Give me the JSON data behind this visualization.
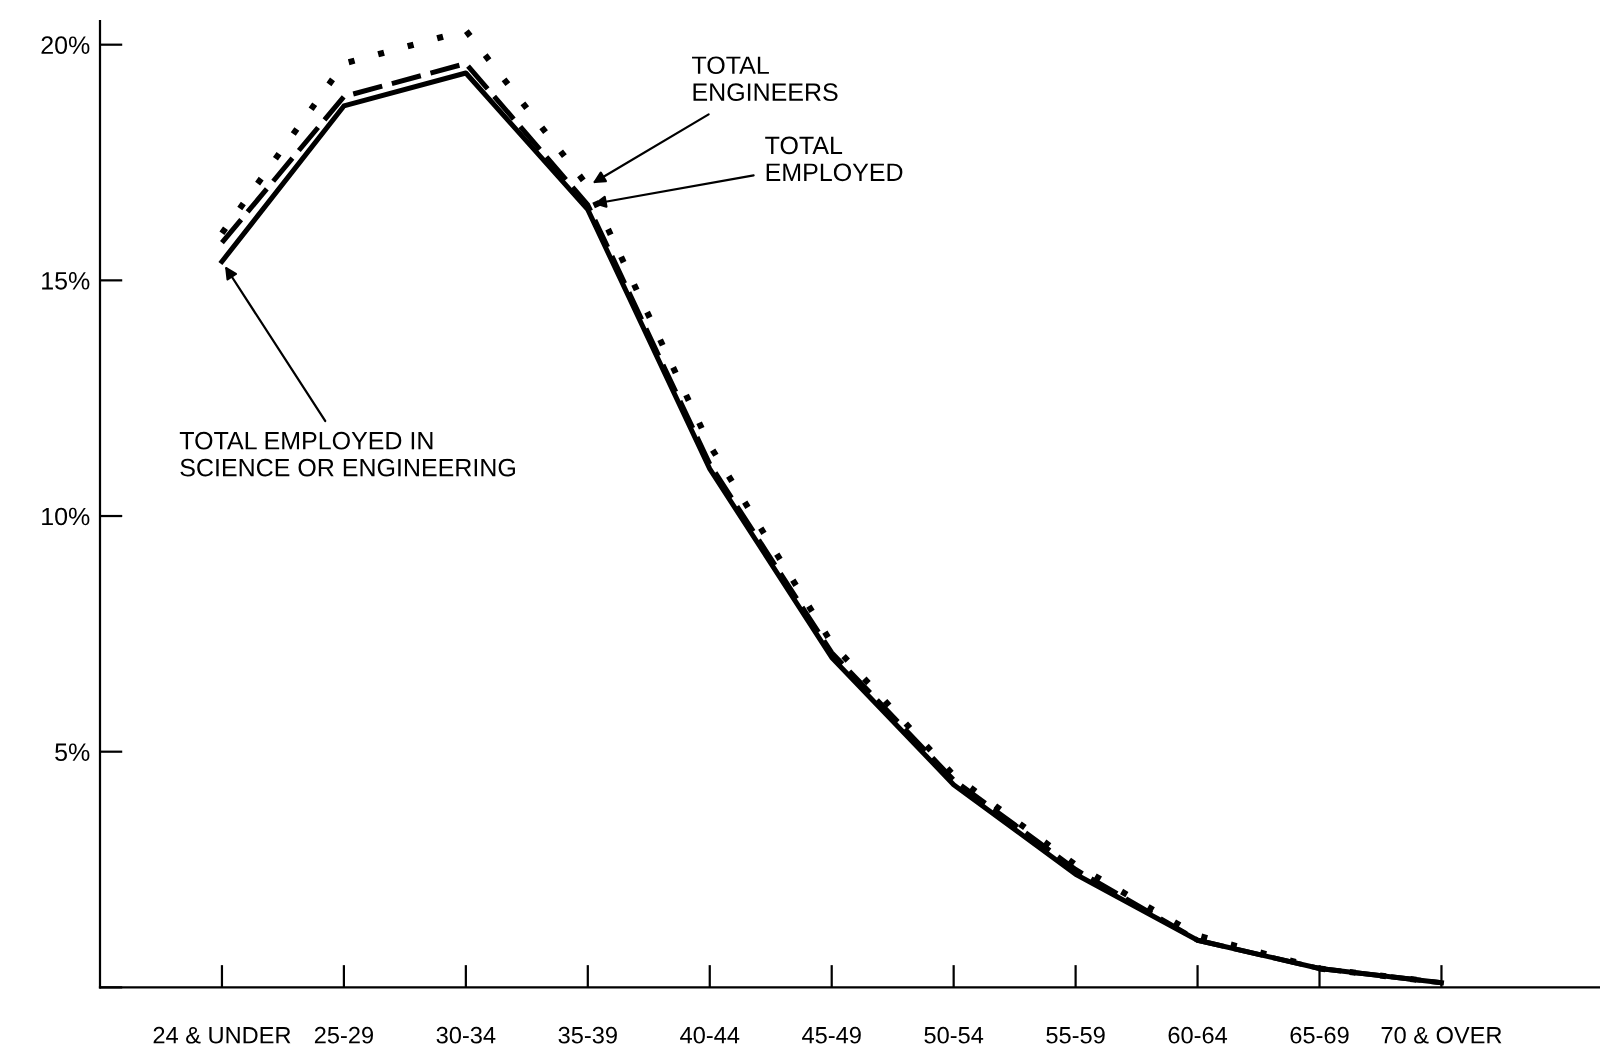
{
  "chart_data": {
    "type": "line",
    "categories": [
      "24 & UNDER",
      "25-29",
      "30-34",
      "35-39",
      "40-44",
      "45-49",
      "50-54",
      "55-59",
      "60-64",
      "65-69",
      "70 & OVER"
    ],
    "series": [
      {
        "color": "#000000",
        "line_style": "dotted",
        "values": [
          16.0,
          19.6,
          20.3,
          17.0,
          11.5,
          7.3,
          4.5,
          2.6,
          1.1,
          0.4,
          0.1
        ]
      },
      {
        "color": "#000000",
        "line_style": "dashed",
        "values": [
          15.8,
          18.9,
          19.6,
          16.6,
          11.1,
          7.1,
          4.4,
          2.5,
          1.0,
          0.4,
          0.1
        ]
      },
      {
        "color": "#000000",
        "line_style": "solid",
        "values": [
          15.4,
          18.7,
          19.4,
          16.5,
          11.0,
          7.0,
          4.3,
          2.4,
          1.0,
          0.4,
          0.1
        ]
      }
    ],
    "ylim": [
      0,
      20.5
    ],
    "yticks": [
      {
        "value": 0,
        "label": null
      },
      {
        "value": 5,
        "label": "5%"
      },
      {
        "value": 10,
        "label": "10%"
      },
      {
        "value": 15,
        "label": "15%"
      },
      {
        "value": 20,
        "label": "20%"
      }
    ],
    "grid": false,
    "legend": false,
    "marker": "none",
    "annotations": [
      {
        "text": "TOTAL\nENGINEERS",
        "x": "35-39",
        "y": 17.0
      },
      {
        "text": "TOTAL\nEMPLOYED",
        "x": "35-39",
        "y": 16.6
      },
      {
        "text": "TOTAL EMPLOYED IN\nSCIENCE OR ENGINEERING",
        "x": "24 & UNDER",
        "y": 15.4
      }
    ]
  }
}
